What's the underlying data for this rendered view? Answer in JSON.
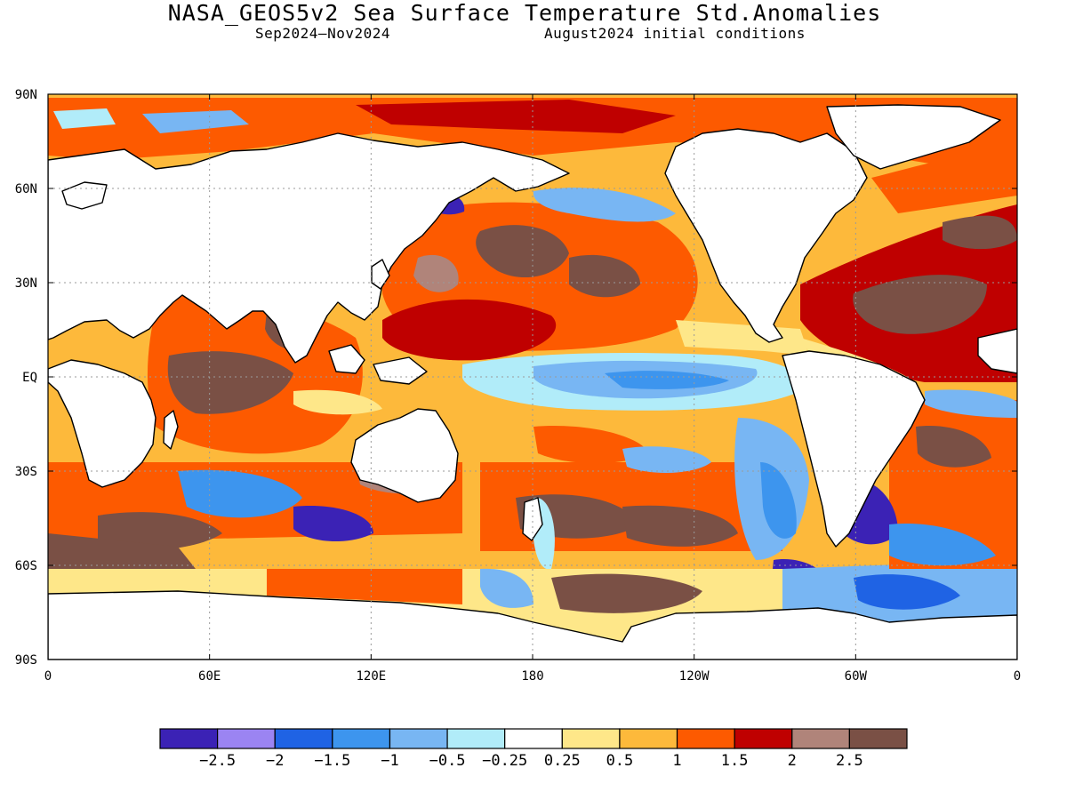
{
  "title": "NASA_GEOS5v2 Sea Surface Temperature Std.Anomalies",
  "subtitle_left": "Sep2024–Nov2024",
  "subtitle_right": "August2024 initial conditions",
  "axes": {
    "lat_labels": [
      "90N",
      "60N",
      "30N",
      "EQ",
      "30S",
      "60S",
      "90S"
    ],
    "lat_values": [
      90,
      60,
      30,
      0,
      -30,
      -60,
      -90
    ],
    "lon_labels": [
      "0",
      "60E",
      "120E",
      "180",
      "120W",
      "60W",
      "0"
    ],
    "lon_values": [
      0,
      60,
      120,
      180,
      240,
      300,
      360
    ]
  },
  "colorbar": {
    "colors": [
      "#3b22b5",
      "#9b84f2",
      "#1f63e4",
      "#3d95ee",
      "#78b6f3",
      "#b1ecf9",
      "#ffffff",
      "#fee789",
      "#fdb93b",
      "#fd5a00",
      "#bf0000",
      "#b0847a",
      "#7a5045"
    ],
    "labels": [
      "−2.5",
      "−2",
      "−1.5",
      "−1",
      "−0.5",
      "−0.25",
      "0.25",
      "0.5",
      "1",
      "1.5",
      "2",
      "2.5"
    ]
  }
}
